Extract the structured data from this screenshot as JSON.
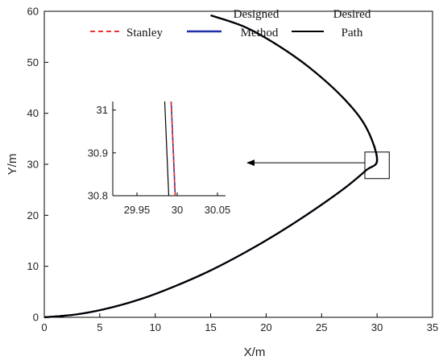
{
  "chart_data": [
    {
      "type": "line",
      "title": "",
      "xlabel": "X/m",
      "ylabel": "Y/m",
      "xlim": [
        0,
        35
      ],
      "ylim": [
        0,
        60
      ],
      "xticks": [
        "0",
        "5",
        "10",
        "15",
        "20",
        "25",
        "30",
        "35"
      ],
      "yticks": [
        "0",
        "10",
        "20",
        "30",
        "40",
        "50",
        "60"
      ],
      "grid": false,
      "legend_position": "top",
      "series": [
        {
          "name": "Stanley",
          "color": "#e8322d",
          "style": "dashed",
          "x": [
            0,
            3,
            6,
            9,
            12,
            15,
            18,
            21,
            24,
            27,
            29,
            30.02,
            29,
            27,
            24,
            21,
            18,
            15
          ],
          "y": [
            0,
            0.6,
            1.9,
            3.8,
            6.3,
            9.2,
            12.6,
            16.4,
            20.6,
            25.2,
            28.8,
            30.9,
            37.3,
            42.9,
            48.8,
            53.4,
            57.0,
            59.2
          ]
        },
        {
          "name": "Designed Method",
          "color": "#1f2fa8",
          "style": "solid",
          "x": [
            0,
            3,
            6,
            9,
            12,
            15,
            18,
            21,
            24,
            27,
            29,
            30.01,
            29,
            27,
            24,
            21,
            18,
            15
          ],
          "y": [
            0,
            0.6,
            1.9,
            3.8,
            6.3,
            9.2,
            12.6,
            16.4,
            20.6,
            25.2,
            28.8,
            30.9,
            37.3,
            42.9,
            48.8,
            53.4,
            57.0,
            59.2
          ]
        },
        {
          "name": "Desired Path",
          "color": "#000000",
          "style": "solid",
          "x": [
            0,
            3,
            6,
            9,
            12,
            15,
            18,
            21,
            24,
            27,
            29,
            29.99,
            29,
            27,
            24,
            21,
            18,
            15
          ],
          "y": [
            0,
            0.6,
            1.9,
            3.8,
            6.3,
            9.2,
            12.6,
            16.4,
            20.6,
            25.2,
            28.8,
            30.9,
            37.3,
            42.9,
            48.8,
            53.4,
            57.0,
            59.2
          ]
        }
      ],
      "annotations": [
        {
          "type": "zoom-box",
          "x_range": [
            28.9,
            31.1
          ],
          "y_range": [
            27.2,
            32.4
          ]
        },
        {
          "type": "arrow",
          "from": [
            28.9,
            30.3
          ],
          "to": [
            18.3,
            30.3
          ]
        }
      ]
    },
    {
      "type": "line",
      "title": "",
      "xlabel": "",
      "ylabel": "",
      "xlim": [
        29.92,
        30.06
      ],
      "ylim": [
        30.8,
        31.02
      ],
      "xticks": [
        "29.95",
        "30",
        "30.05"
      ],
      "yticks": [
        "30.8",
        "30.9",
        "31"
      ],
      "grid": false,
      "inset": true,
      "series": [
        {
          "color": "#000000",
          "style": "solid",
          "x": [
            29.9845,
            29.9895
          ],
          "y": [
            31.02,
            30.8
          ]
        },
        {
          "color": "#1f2fa8",
          "style": "solid",
          "x": [
            29.9925,
            29.9975
          ],
          "y": [
            31.02,
            30.8
          ]
        },
        {
          "color": "#e8322d",
          "style": "dashed",
          "x": [
            29.9925,
            29.9975
          ],
          "y": [
            31.02,
            30.8
          ]
        }
      ]
    }
  ]
}
